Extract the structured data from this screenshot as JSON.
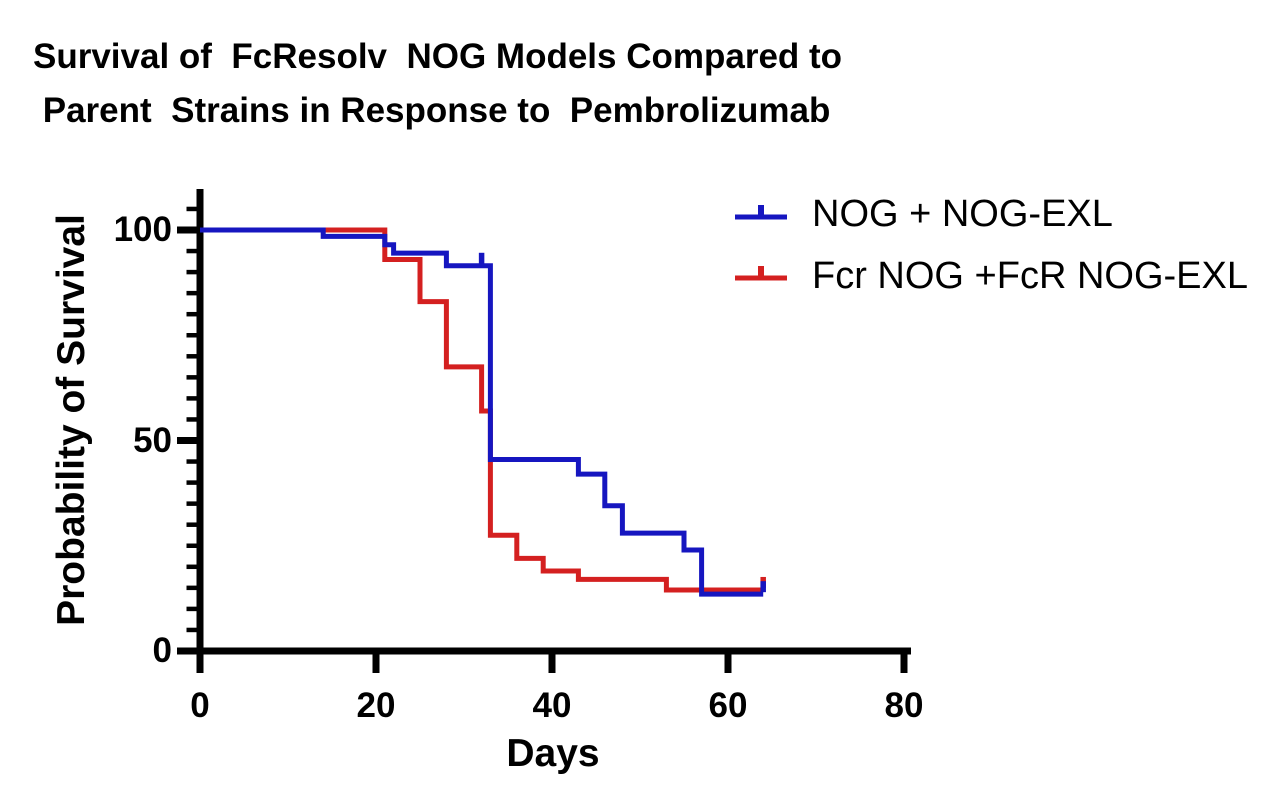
{
  "title": {
    "lines": [
      "Survival of  FcResolv  NOG Models Compared to",
      " Parent  Strains in Response to  Pembrolizumab"
    ]
  },
  "axes": {
    "x_label": "Days",
    "y_label": "Probability of Survival",
    "x_tick_labels": [
      "0",
      "20",
      "40",
      "60",
      "80"
    ],
    "y_tick_labels": [
      "100",
      "50",
      "0"
    ]
  },
  "legend": {
    "items": [
      {
        "label": "NOG + NOG-EXL",
        "color": "#1616c0"
      },
      {
        "label": "Fcr NOG +FcR NOG-EXL",
        "color": "#d42020"
      }
    ]
  },
  "chart_data": {
    "type": "line",
    "step": true,
    "kind": "kaplan-meier-survival",
    "title": "Survival of FcResolv NOG Models Compared to Parent Strains in Response to Pembrolizumab",
    "xlabel": "Days",
    "ylabel": "Probability of Survival",
    "xlim": [
      0,
      80
    ],
    "ylim": [
      0,
      100
    ],
    "xticks": [
      0,
      20,
      40,
      60,
      80
    ],
    "yticks": [
      0,
      50,
      100
    ],
    "y_minor_tick_step": 5,
    "grid": false,
    "legend_position": "top-right",
    "series": [
      {
        "name": "NOG + NOG-EXL",
        "color": "#1616c0",
        "steps_day_level": [
          [
            0,
            100
          ],
          [
            14,
            98.5
          ],
          [
            21,
            96.5
          ],
          [
            22,
            94.5
          ],
          [
            28,
            91.5
          ],
          [
            33,
            45.5
          ],
          [
            43,
            42
          ],
          [
            46,
            34.5
          ],
          [
            48,
            28
          ],
          [
            55,
            24
          ],
          [
            57,
            13.5
          ]
        ],
        "end_day": 64,
        "censor_marks": [
          [
            32,
            91.5
          ],
          [
            64,
            13.5
          ]
        ]
      },
      {
        "name": "Fcr NOG +FcR NOG-EXL",
        "color": "#d42020",
        "steps_day_level": [
          [
            0,
            100
          ],
          [
            21,
            93
          ],
          [
            25,
            83
          ],
          [
            28,
            67.5
          ],
          [
            32,
            57
          ],
          [
            33,
            27.5
          ],
          [
            36,
            22
          ],
          [
            39,
            19
          ],
          [
            43,
            17
          ],
          [
            53,
            14.5
          ]
        ],
        "end_day": 64,
        "censor_marks": [
          [
            64,
            14.5
          ]
        ]
      }
    ]
  }
}
